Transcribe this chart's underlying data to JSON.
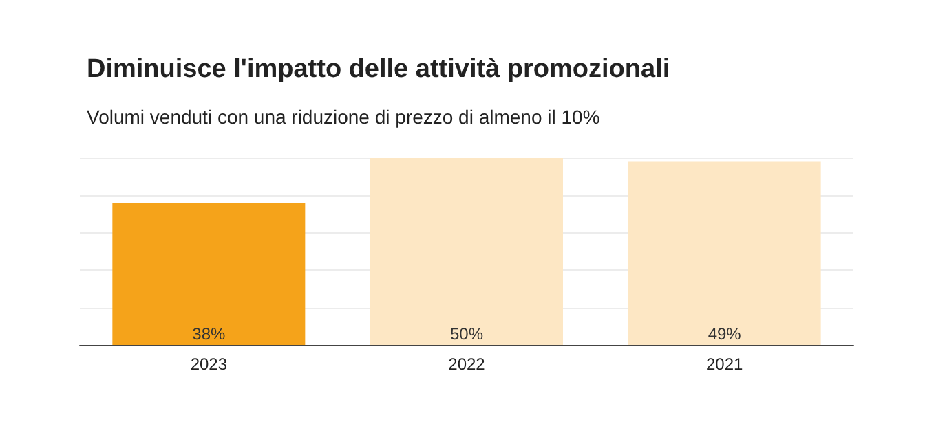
{
  "chart_data": {
    "type": "bar",
    "title": "Diminuisce l'impatto delle attività promozionali",
    "subtitle": "Volumi venduti con una riduzione di prezzo di almeno il 10%",
    "categories": [
      "2023",
      "2022",
      "2021"
    ],
    "values": [
      38,
      50,
      49
    ],
    "value_labels": [
      "38%",
      "50%",
      "49%"
    ],
    "colors": [
      "#f5a31a",
      "#fde7c4",
      "#fde7c4"
    ],
    "ylim": [
      0,
      50
    ],
    "yticks": [
      {
        "value": 0,
        "label": null
      },
      {
        "value": 10,
        "label": null
      },
      {
        "value": 20,
        "label": null
      },
      {
        "value": 30,
        "label": null
      },
      {
        "value": 40,
        "label": null
      },
      {
        "value": 50,
        "label": null
      }
    ],
    "grid": "y",
    "tick_labels": "x"
  }
}
